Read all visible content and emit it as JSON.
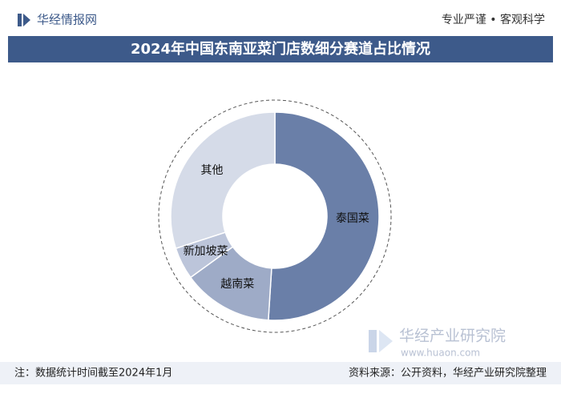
{
  "header": {
    "brand": "华经情报网",
    "tagline": "专业严谨 • 客观科学"
  },
  "chart_data": {
    "type": "donut",
    "title": "2024年中国东南亚菜门店数细分赛道占比情况",
    "categories": [
      "泰国菜",
      "越南菜",
      "新加坡菜",
      "其他"
    ],
    "values": [
      51,
      14,
      5,
      30
    ],
    "colors": [
      "#6a7fa8",
      "#9eabc7",
      "#bcc5da",
      "#d5dbe8"
    ]
  },
  "watermark": {
    "name": "华经产业研究院",
    "url": "www.huaon.com"
  },
  "footer": {
    "note": "注：数据统计时间截至2024年1月",
    "source": "资料来源：公开资料，华经产业研究院整理"
  }
}
